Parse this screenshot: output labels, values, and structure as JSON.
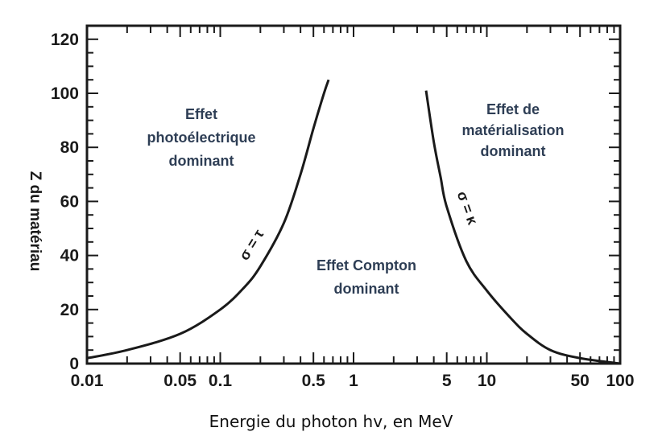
{
  "chart_data": {
    "type": "line",
    "title": "",
    "xlabel": "Energie du photon hv, en MeV",
    "ylabel": "Z du matériau",
    "x_scale": "log",
    "xlim": [
      0.01,
      100
    ],
    "ylim": [
      0,
      125
    ],
    "grid": false,
    "x_tick_labels": [
      {
        "value": 0.01,
        "label": "0.01"
      },
      {
        "value": 0.05,
        "label": "0.05"
      },
      {
        "value": 0.1,
        "label": "0.1"
      },
      {
        "value": 0.5,
        "label": "0.5"
      },
      {
        "value": 1,
        "label": "1"
      },
      {
        "value": 5,
        "label": "5"
      },
      {
        "value": 10,
        "label": "10"
      },
      {
        "value": 50,
        "label": "50"
      },
      {
        "value": 100,
        "label": "100"
      }
    ],
    "y_tick_labels": [
      {
        "value": 0,
        "label": "0"
      },
      {
        "value": 20,
        "label": "20"
      },
      {
        "value": 40,
        "label": "40"
      },
      {
        "value": 60,
        "label": "60"
      },
      {
        "value": 80,
        "label": "80"
      },
      {
        "value": 100,
        "label": "100"
      },
      {
        "value": 120,
        "label": "120"
      }
    ],
    "series": [
      {
        "name": "σ = τ",
        "points": [
          {
            "x": 0.01,
            "y": 2
          },
          {
            "x": 0.02,
            "y": 5
          },
          {
            "x": 0.05,
            "y": 11
          },
          {
            "x": 0.1,
            "y": 20
          },
          {
            "x": 0.15,
            "y": 28
          },
          {
            "x": 0.2,
            "y": 36
          },
          {
            "x": 0.3,
            "y": 52
          },
          {
            "x": 0.4,
            "y": 70
          },
          {
            "x": 0.5,
            "y": 87
          },
          {
            "x": 0.6,
            "y": 100
          },
          {
            "x": 0.65,
            "y": 105
          }
        ]
      },
      {
        "name": "σ = κ",
        "points": [
          {
            "x": 3.5,
            "y": 101
          },
          {
            "x": 4,
            "y": 82
          },
          {
            "x": 4.5,
            "y": 69
          },
          {
            "x": 5,
            "y": 58
          },
          {
            "x": 7,
            "y": 38
          },
          {
            "x": 10,
            "y": 27
          },
          {
            "x": 15,
            "y": 17
          },
          {
            "x": 20,
            "y": 11
          },
          {
            "x": 30,
            "y": 5
          },
          {
            "x": 50,
            "y": 2
          },
          {
            "x": 100,
            "y": 0
          }
        ]
      }
    ],
    "annotations": [
      {
        "lines": [
          "Effet",
          "photoélectrique",
          "dominant"
        ]
      },
      {
        "lines": [
          "Effet Compton",
          "dominant"
        ]
      },
      {
        "lines": [
          "Effet de",
          "matérialisation",
          "dominant"
        ]
      }
    ],
    "colors": {
      "curve": "#1a1a1a",
      "frame": "#1a1a1a",
      "region_text": "#2e3e55"
    }
  }
}
